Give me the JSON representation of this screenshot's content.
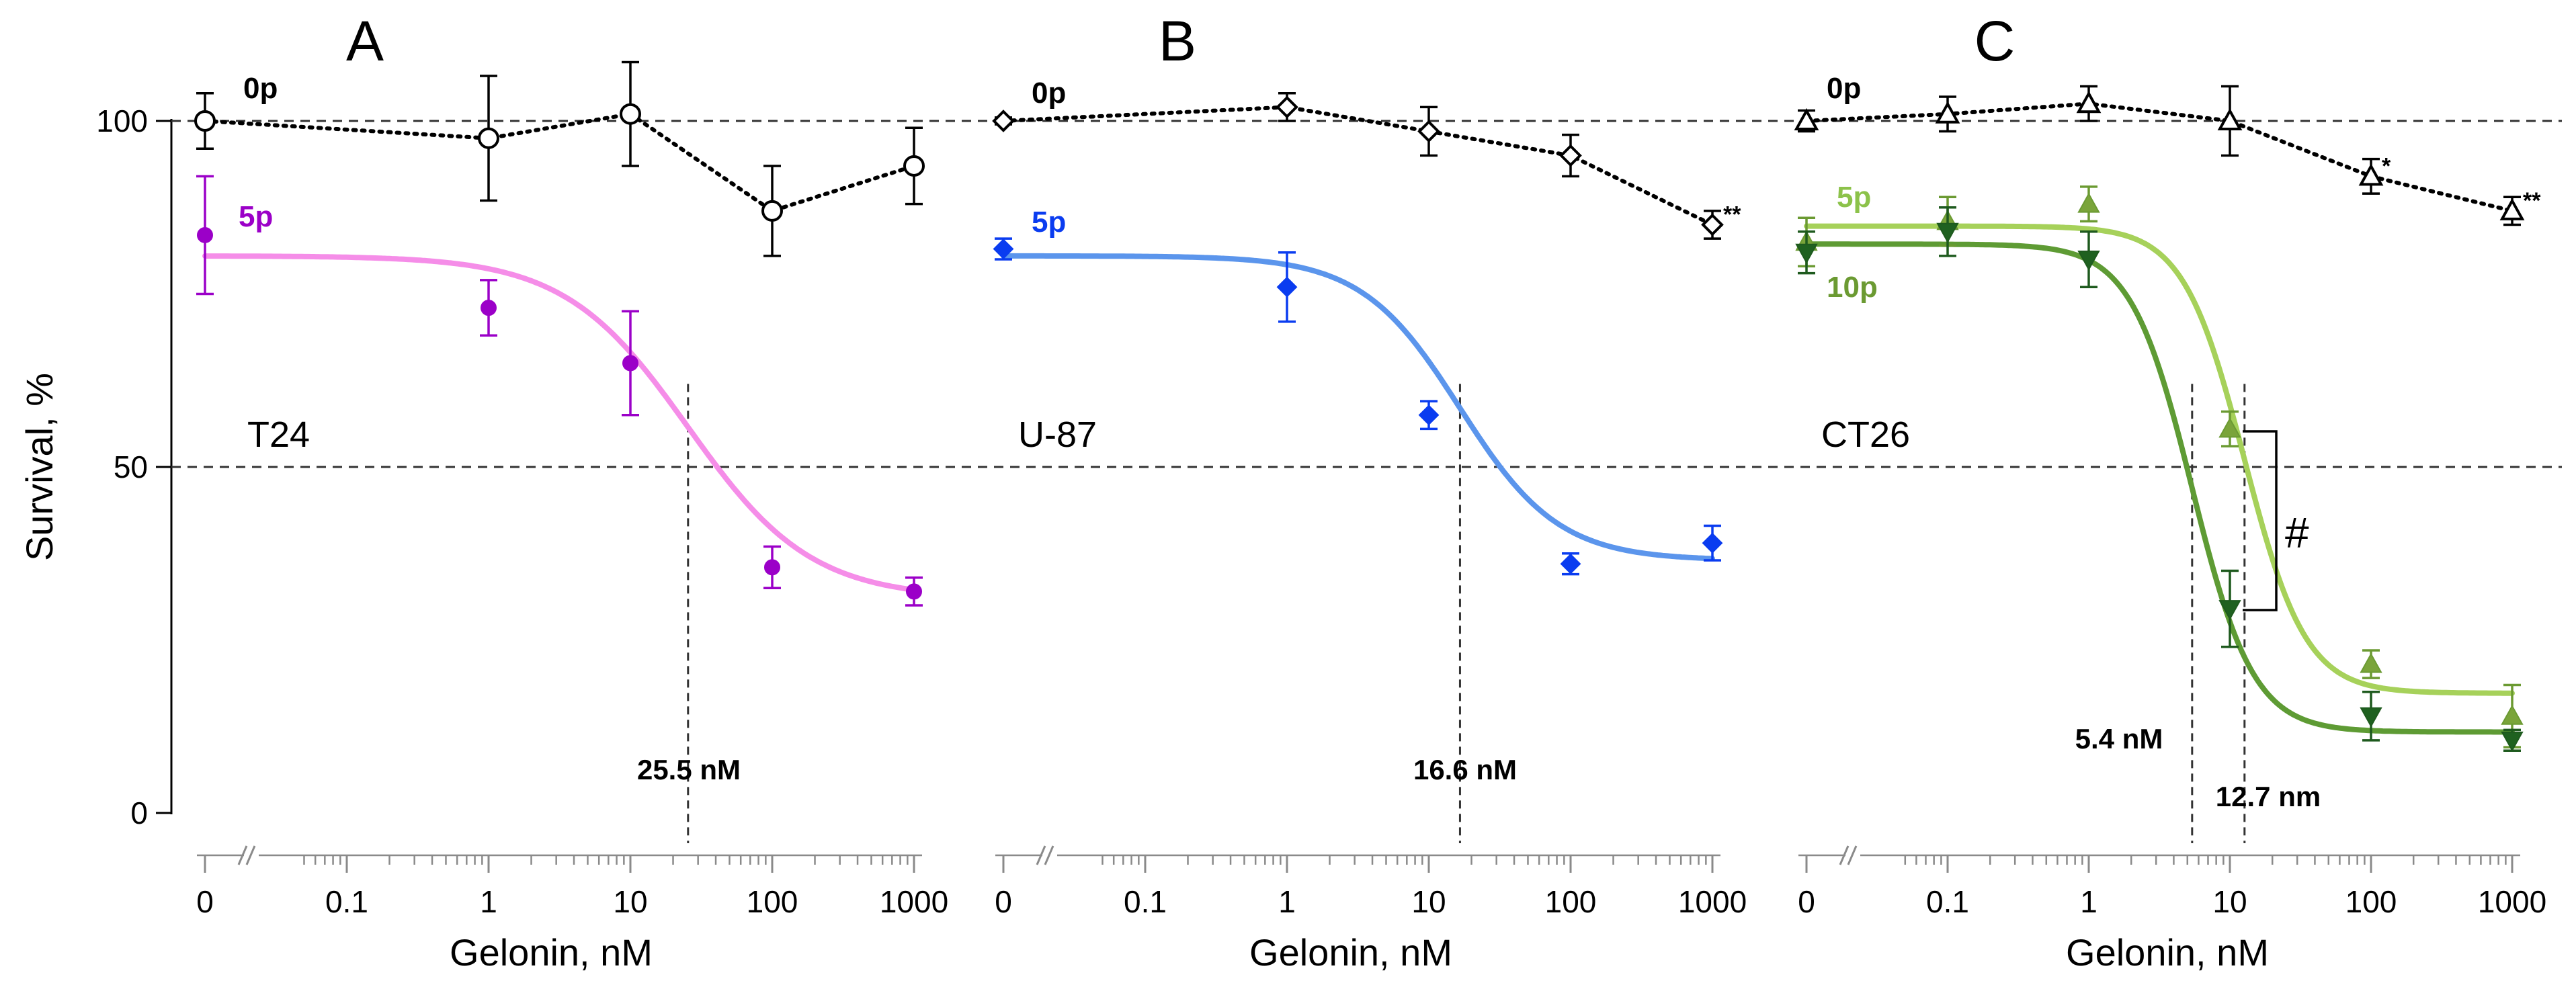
{
  "figure": {
    "ylabel": "Survival, %",
    "ytick_labels": [
      "0",
      "50",
      "100"
    ],
    "reference_lines": [
      50,
      100
    ]
  },
  "chart_data": [
    {
      "type": "line",
      "panel": "A",
      "cell_line": "T24",
      "xlabel": "Gelonin, nM",
      "ylabel": "Survival, %",
      "x_scale": "log with broken axis at 0",
      "x_tick_values": [
        0,
        0.1,
        1,
        10,
        100,
        1000
      ],
      "x_tick_labels": [
        "0",
        "0.1",
        "1",
        "10",
        "100",
        "1000"
      ],
      "ylim": [
        0,
        100
      ],
      "series": [
        {
          "name": "0p",
          "label": "0p",
          "marker": "circle",
          "style": "dotted",
          "color": "#000000",
          "fill": "#ffffff",
          "x": [
            0,
            1,
            10,
            100,
            1000
          ],
          "y": [
            100,
            97.5,
            101,
            87,
            93.5
          ],
          "err": [
            4,
            9,
            7.5,
            6.5,
            5.5
          ]
        },
        {
          "name": "5p",
          "label": "5p",
          "marker": "circle",
          "style": "fit",
          "color": "#9b00c8",
          "fit_color": "#f58de8",
          "fill": "#9b00c8",
          "x": [
            0,
            1,
            10,
            100,
            1000
          ],
          "y": [
            83.5,
            73,
            65,
            35.5,
            32
          ],
          "err": [
            8.5,
            4,
            7.5,
            3,
            2
          ],
          "fit": {
            "top": 80.5,
            "bottom": 31,
            "ic50": 25.5,
            "hill": 1.0
          }
        }
      ],
      "ic50": {
        "value": 25.5,
        "label": "25.5 nM"
      }
    },
    {
      "type": "line",
      "panel": "B",
      "cell_line": "U-87",
      "xlabel": "Gelonin, nM",
      "ylabel": "Survival, %",
      "x_scale": "log with broken axis at 0",
      "x_tick_values": [
        0,
        0.1,
        1,
        10,
        100,
        1000
      ],
      "x_tick_labels": [
        "0",
        "0.1",
        "1",
        "10",
        "100",
        "1000"
      ],
      "ylim": [
        0,
        100
      ],
      "series": [
        {
          "name": "0p",
          "label": "0p",
          "marker": "diamond",
          "style": "dotted",
          "color": "#000000",
          "fill": "#ffffff",
          "x": [
            0,
            1,
            10,
            100,
            1000
          ],
          "y": [
            100,
            102,
            98.5,
            95,
            85
          ],
          "err": [
            0.5,
            2,
            3.5,
            3,
            2
          ],
          "significance": [
            null,
            null,
            null,
            null,
            "**"
          ]
        },
        {
          "name": "5p",
          "label": "5p",
          "marker": "diamond",
          "style": "fit",
          "color": "#0a3cf0",
          "fit_color": "#5b95ec",
          "fill": "#0a3cf0",
          "x": [
            0,
            1,
            10,
            100,
            1000
          ],
          "y": [
            81.5,
            76,
            57.5,
            36,
            39
          ],
          "err": [
            1.5,
            5,
            2,
            1.5,
            2.5
          ],
          "fit": {
            "top": 80.5,
            "bottom": 36.5,
            "ic50": 16.6,
            "hill": 1.25
          }
        }
      ],
      "ic50": {
        "value": 16.6,
        "label": "16.6 nM"
      }
    },
    {
      "type": "line",
      "panel": "C",
      "cell_line": "CT26",
      "xlabel": "Gelonin, nM",
      "ylabel": "Survival, %",
      "x_scale": "log with broken axis at 0",
      "x_tick_values": [
        0,
        0.1,
        1,
        10,
        100,
        1000
      ],
      "x_tick_labels": [
        "0",
        "0.1",
        "1",
        "10",
        "100",
        "1000"
      ],
      "ylim": [
        0,
        100
      ],
      "series": [
        {
          "name": "0p",
          "label": "0p",
          "marker": "triangle-up",
          "style": "dotted",
          "color": "#000000",
          "fill": "#ffffff",
          "x": [
            0,
            0.1,
            1,
            10,
            100,
            1000
          ],
          "y": [
            100,
            101,
            102.5,
            100,
            92,
            87
          ],
          "err": [
            1.5,
            2.5,
            2.5,
            5,
            2.5,
            2
          ],
          "significance": [
            null,
            null,
            null,
            null,
            "*",
            "**"
          ]
        },
        {
          "name": "5p",
          "label": "5p",
          "marker": "triangle-up",
          "style": "fit",
          "color": "#6b9a32",
          "fit_color": "#a6d15a",
          "fill": "#7aa43a",
          "x": [
            0,
            0.1,
            1,
            10,
            100,
            1000
          ],
          "y": [
            82.5,
            85.5,
            88,
            55.5,
            21.5,
            14
          ],
          "err": [
            3.5,
            3.5,
            2.5,
            2.5,
            2,
            4.5
          ],
          "fit": {
            "top": 84.8,
            "bottom": 17.3,
            "ic50": 12.7,
            "hill": 2.0
          }
        },
        {
          "name": "10p",
          "label": "10p",
          "marker": "triangle-down",
          "style": "fit",
          "color": "#1e5a1e",
          "fit_color": "#5e9b34",
          "fill": "#1f6120",
          "x": [
            0,
            0.1,
            1,
            10,
            100,
            1000
          ],
          "y": [
            81,
            84,
            80,
            29.5,
            14,
            10.5
          ],
          "err": [
            3,
            3.5,
            4,
            5.5,
            3.5,
            1.5
          ],
          "fit": {
            "top": 82.2,
            "bottom": 11.7,
            "ic50": 5.4,
            "hill": 2.0
          }
        }
      ],
      "ic50": [
        {
          "value": 5.4,
          "label": "5.4 nM"
        },
        {
          "value": 12.7,
          "label": "12.7 nm"
        }
      ],
      "bracket": {
        "between": [
          "5p",
          "10p"
        ],
        "at_x": 10,
        "label": "#"
      }
    }
  ]
}
